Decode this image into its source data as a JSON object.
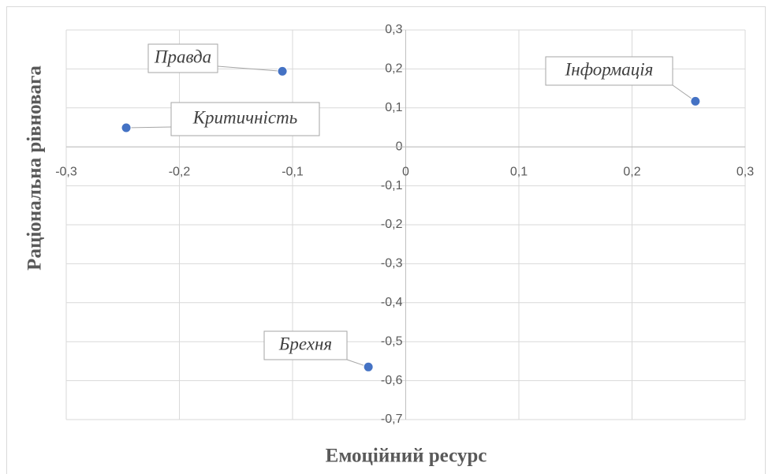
{
  "chart_data": {
    "type": "scatter",
    "x_label": "Емоційний ресурс",
    "y_label": "Раціональна рівновага",
    "labels": [
      "Правда",
      "Критичність",
      "Інформація",
      "Брехня"
    ],
    "x": [
      -0.109,
      -0.247,
      0.256,
      -0.033
    ],
    "values": [
      0.194,
      0.049,
      0.117,
      -0.565
    ],
    "color": "#4472c4",
    "xlim": [
      -0.3,
      0.3
    ],
    "xticks": [
      {
        "value": -0.3,
        "label": "-0,3"
      },
      {
        "value": -0.2,
        "label": "-0,2"
      },
      {
        "value": -0.1,
        "label": "-0,1"
      },
      0,
      {
        "value": 0.1,
        "label": "0,1"
      },
      {
        "value": 0.2,
        "label": "0,2"
      },
      {
        "value": 0.3,
        "label": "0,3"
      }
    ],
    "ylim": [
      -0.7,
      0.3
    ],
    "yticks": [
      {
        "value": 0.3,
        "label": "0,3"
      },
      {
        "value": 0.2,
        "label": "0,2"
      },
      {
        "value": 0.1,
        "label": "0,1"
      },
      0,
      {
        "value": -0.1,
        "label": "-0,1"
      },
      {
        "value": -0.2,
        "label": "-0,2"
      },
      {
        "value": -0.3,
        "label": "-0,3"
      },
      {
        "value": -0.4,
        "label": "-0,4"
      },
      {
        "value": -0.5,
        "label": "-0,5"
      },
      {
        "value": -0.6,
        "label": "-0,6"
      },
      {
        "value": -0.7,
        "label": "-0,7"
      }
    ],
    "grid": true
  }
}
